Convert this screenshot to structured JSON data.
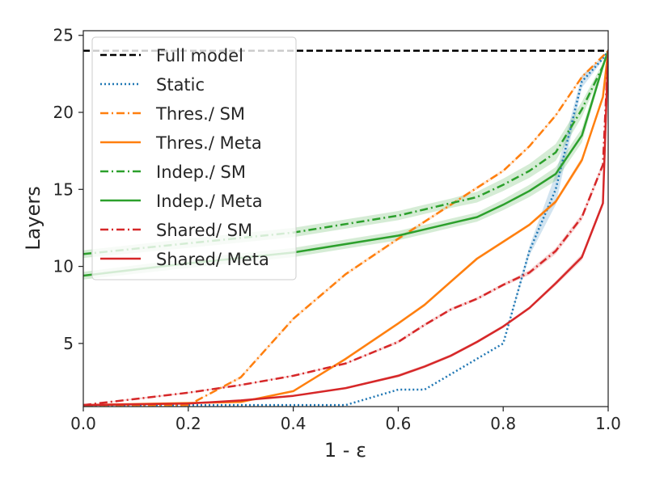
{
  "chart_data": {
    "type": "line",
    "title": "",
    "xlabel": "1 - ε",
    "ylabel": "Layers",
    "xlim": [
      0.0,
      1.0
    ],
    "ylim": [
      0.9,
      25.3
    ],
    "xticks": [
      0.0,
      0.2,
      0.4,
      0.6,
      0.8,
      1.0
    ],
    "xtick_labels": [
      "0.0",
      "0.2",
      "0.4",
      "0.6",
      "0.8",
      "1.0"
    ],
    "yticks": [
      5,
      10,
      15,
      20,
      25
    ],
    "ytick_labels": [
      "5",
      "10",
      "15",
      "20",
      "25"
    ],
    "grid": false,
    "legend_position": "top-left",
    "series": [
      {
        "name": "Full model",
        "color": "#000000",
        "style": "dashed",
        "x": [
          0.0,
          1.0
        ],
        "y": [
          24,
          24
        ]
      },
      {
        "name": "Static",
        "color": "#1f77b4",
        "style": "dotted",
        "x": [
          0.0,
          0.1,
          0.2,
          0.3,
          0.4,
          0.5,
          0.6,
          0.65,
          0.7,
          0.75,
          0.8,
          0.85,
          0.9,
          0.95,
          0.99,
          1.0
        ],
        "y": [
          1.0,
          1.0,
          1.0,
          1.0,
          1.0,
          1.0,
          2.0,
          2.0,
          3.0,
          4.0,
          5.0,
          11.0,
          15.0,
          22.0,
          23.5,
          24.0
        ],
        "band": [
          0,
          0,
          0,
          0,
          0,
          0,
          0,
          0,
          0,
          0,
          0,
          0.3,
          1.0,
          0.4,
          0.1,
          0
        ]
      },
      {
        "name": "Thres./ SM",
        "color": "#ff7f0e",
        "style": "dashdot",
        "x": [
          0.0,
          0.2,
          0.3,
          0.4,
          0.5,
          0.6,
          0.7,
          0.8,
          0.85,
          0.9,
          0.95,
          1.0
        ],
        "y": [
          1.0,
          1.0,
          2.8,
          6.6,
          9.5,
          11.8,
          14.0,
          16.2,
          17.8,
          19.8,
          22.3,
          24.0
        ],
        "band": [
          0,
          0,
          0.1,
          0.1,
          0.1,
          0.1,
          0.1,
          0.1,
          0.1,
          0.1,
          0.1,
          0
        ]
      },
      {
        "name": "Thres./ Meta",
        "color": "#ff7f0e",
        "style": "solid",
        "x": [
          0.0,
          0.3,
          0.4,
          0.5,
          0.6,
          0.65,
          0.7,
          0.75,
          0.8,
          0.85,
          0.9,
          0.95,
          0.99,
          1.0
        ],
        "y": [
          1.0,
          1.2,
          1.9,
          4.0,
          6.3,
          7.5,
          9.0,
          10.5,
          11.6,
          12.7,
          14.2,
          16.9,
          21.0,
          24.0
        ],
        "band": [
          0,
          0,
          0.05,
          0.1,
          0.1,
          0.1,
          0.1,
          0.1,
          0.1,
          0.1,
          0.15,
          0.2,
          0.1,
          0
        ]
      },
      {
        "name": "Indep./ SM",
        "color": "#2ca02c",
        "style": "dashdot",
        "x": [
          0.0,
          0.2,
          0.4,
          0.6,
          0.65,
          0.7,
          0.75,
          0.8,
          0.85,
          0.9,
          0.95,
          0.99,
          1.0
        ],
        "y": [
          10.8,
          11.5,
          12.2,
          13.3,
          13.7,
          14.1,
          14.5,
          15.3,
          16.2,
          17.4,
          20.2,
          23.0,
          24.0
        ],
        "band": [
          0.25,
          0.3,
          0.3,
          0.3,
          0.3,
          0.3,
          0.35,
          0.4,
          0.45,
          0.55,
          0.5,
          0.2,
          0
        ]
      },
      {
        "name": "Indep./ Meta",
        "color": "#2ca02c",
        "style": "solid",
        "x": [
          0.0,
          0.2,
          0.4,
          0.6,
          0.65,
          0.7,
          0.75,
          0.8,
          0.85,
          0.9,
          0.95,
          0.99,
          1.0
        ],
        "y": [
          9.4,
          10.2,
          10.9,
          12.0,
          12.4,
          12.8,
          13.2,
          14.0,
          14.9,
          16.0,
          18.5,
          23.0,
          24.0
        ],
        "band": [
          0.25,
          0.3,
          0.3,
          0.3,
          0.3,
          0.3,
          0.3,
          0.35,
          0.4,
          0.45,
          0.45,
          0.2,
          0
        ]
      },
      {
        "name": "Shared/ SM",
        "color": "#d62728",
        "style": "dashdot",
        "x": [
          0.0,
          0.1,
          0.2,
          0.3,
          0.4,
          0.5,
          0.6,
          0.65,
          0.7,
          0.75,
          0.8,
          0.85,
          0.9,
          0.95,
          0.99,
          1.0
        ],
        "y": [
          1.0,
          1.4,
          1.8,
          2.3,
          2.9,
          3.7,
          5.1,
          6.2,
          7.2,
          7.9,
          8.8,
          9.6,
          11.0,
          13.2,
          16.6,
          24.0
        ],
        "band": [
          0,
          0.05,
          0.05,
          0.05,
          0.05,
          0.05,
          0.1,
          0.1,
          0.1,
          0.1,
          0.1,
          0.15,
          0.2,
          0.2,
          0.2,
          0
        ]
      },
      {
        "name": "Shared/ Meta",
        "color": "#d62728",
        "style": "solid",
        "x": [
          0.0,
          0.2,
          0.3,
          0.4,
          0.5,
          0.6,
          0.65,
          0.7,
          0.75,
          0.8,
          0.85,
          0.9,
          0.95,
          0.99,
          1.0
        ],
        "y": [
          1.0,
          1.1,
          1.3,
          1.6,
          2.1,
          2.9,
          3.5,
          4.2,
          5.1,
          6.1,
          7.3,
          8.9,
          10.6,
          14.1,
          24.0
        ],
        "band": [
          0,
          0,
          0,
          0.05,
          0.05,
          0.1,
          0.1,
          0.1,
          0.1,
          0.1,
          0.1,
          0.15,
          0.2,
          0.2,
          0
        ]
      }
    ]
  }
}
